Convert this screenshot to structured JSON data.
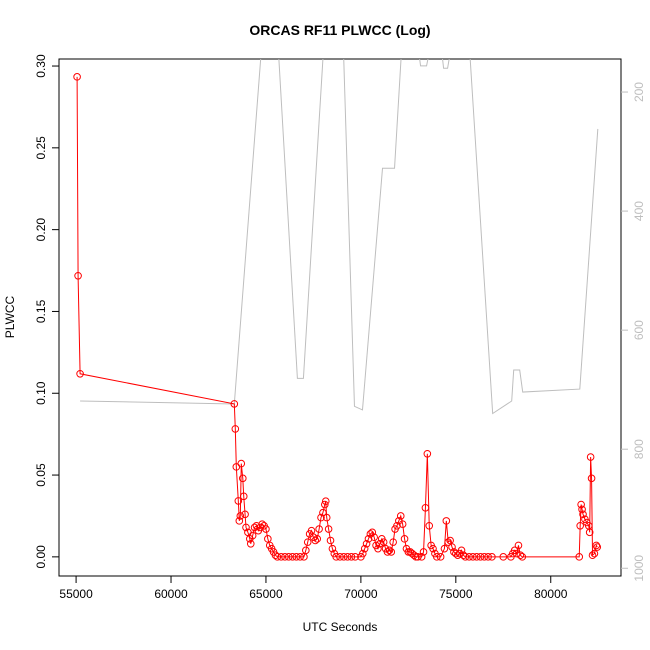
{
  "chart_data": {
    "type": "line",
    "title": "ORCAS RF11 PLWCC (Log)",
    "xlabel": "UTC Seconds",
    "ylabel": "PLWCC",
    "xlim": [
      54100,
      83700
    ],
    "xticks": [
      55000,
      60000,
      65000,
      70000,
      75000,
      80000
    ],
    "ylim": [
      -0.0117,
      0.3043
    ],
    "yticks": [
      {
        "value": 0,
        "label": "0.00"
      },
      {
        "value": 0.05,
        "label": "0.05"
      },
      {
        "value": 0.1,
        "label": "0.10"
      },
      {
        "value": 0.15,
        "label": "0.15"
      },
      {
        "value": 0.2,
        "label": "0.20"
      },
      {
        "value": 0.25,
        "label": "0.25"
      },
      {
        "value": 0.3,
        "label": "0.30"
      }
    ],
    "y2lim": [
      1013,
      144.5
    ],
    "y2ticks": [
      200,
      400,
      600,
      800,
      1000
    ],
    "y2color": "#bebebe",
    "series": [
      {
        "color": "#bebebe",
        "axis": "y2",
        "markers": false,
        "x": [
          55211,
          63333,
          64757,
          65654,
          66656,
          66973,
          68028,
          69083,
          69662,
          70084,
          71139,
          71772,
          72141,
          73038,
          73143,
          73460,
          73618,
          74250,
          74356,
          74567,
          74726,
          75728,
          76941,
          77943,
          78049,
          78365,
          78523,
          81530,
          82479
        ],
        "values": [
          719,
          724,
          130,
          130,
          681,
          681,
          130,
          130,
          728,
          734,
          328,
          328,
          130,
          130,
          156,
          156,
          130,
          130,
          160,
          160,
          130,
          130,
          740,
          719,
          667,
          667,
          704,
          699,
          262
        ]
      },
      {
        "color": "#ff0000",
        "axis": "y",
        "markers": true,
        "x": [
          55053,
          55105,
          55211,
          63333,
          63386,
          63439,
          63544,
          63597,
          63650,
          63700,
          63780,
          63830,
          63900,
          63950,
          64050,
          64150,
          64200,
          64300,
          64400,
          64500,
          64600,
          64700,
          64800,
          64900,
          65000,
          65100,
          65200,
          65300,
          65400,
          65500,
          65600,
          65800,
          66000,
          66200,
          66400,
          66600,
          66800,
          67000,
          67100,
          67200,
          67300,
          67400,
          67500,
          67600,
          67700,
          67800,
          67900,
          68000,
          68100,
          68150,
          68200,
          68300,
          68400,
          68500,
          68600,
          68700,
          68900,
          69100,
          69300,
          69500,
          69700,
          70000,
          70100,
          70200,
          70300,
          70400,
          70500,
          70600,
          70700,
          70800,
          70900,
          71000,
          71100,
          71200,
          71300,
          71400,
          71500,
          71600,
          71700,
          71800,
          71900,
          72000,
          72100,
          72200,
          72300,
          72400,
          72500,
          72600,
          72700,
          72800,
          72900,
          73000,
          73200,
          73300,
          73400,
          73500,
          73600,
          73700,
          73800,
          73900,
          74000,
          74200,
          74400,
          74500,
          74600,
          74700,
          74800,
          74900,
          75000,
          75100,
          75200,
          75300,
          75400,
          75500,
          75700,
          75900,
          76100,
          76300,
          76500,
          76700,
          76900,
          77500,
          77900,
          78000,
          78100,
          78200,
          78300,
          78400,
          78500,
          81500,
          81550,
          81600,
          81650,
          81700,
          81800,
          81900,
          82000,
          82050,
          82100,
          82150,
          82200,
          82300,
          82400,
          82450
        ],
        "values": [
          0.2934,
          0.1718,
          0.1119,
          0.0935,
          0.0782,
          0.055,
          0.0342,
          0.022,
          0.025,
          0.057,
          0.048,
          0.037,
          0.026,
          0.018,
          0.015,
          0.011,
          0.008,
          0.013,
          0.018,
          0.019,
          0.016,
          0.018,
          0.02,
          0.019,
          0.017,
          0.011,
          0.007,
          0.005,
          0.003,
          0.001,
          0,
          0,
          0,
          0,
          0,
          0,
          0,
          0,
          0.004,
          0.009,
          0.014,
          0.016,
          0.012,
          0.01,
          0.011,
          0.017,
          0.024,
          0.027,
          0.032,
          0.034,
          0.024,
          0.017,
          0.01,
          0.005,
          0.002,
          0,
          0,
          0,
          0,
          0,
          0,
          0,
          0.002,
          0.005,
          0.008,
          0.011,
          0.014,
          0.015,
          0.012,
          0.007,
          0.005,
          0.008,
          0.011,
          0.009,
          0.005,
          0.003,
          0.004,
          0.003,
          0.009,
          0.017,
          0.019,
          0.022,
          0.025,
          0.02,
          0.011,
          0.005,
          0.003,
          0.003,
          0.002,
          0.001,
          0,
          0,
          0,
          0.003,
          0.03,
          0.063,
          0.019,
          0.007,
          0.005,
          0.002,
          0,
          0,
          0.005,
          0.022,
          0.009,
          0.01,
          0.006,
          0.003,
          0.002,
          0.001,
          0.002,
          0.004,
          0.001,
          0,
          0,
          0,
          0,
          0,
          0,
          0,
          0,
          0,
          0,
          0.002,
          0.004,
          0.002,
          0.007,
          0.001,
          0,
          0,
          0.019,
          0.032,
          0.029,
          0.026,
          0.023,
          0.021,
          0.019,
          0.015,
          0.061,
          0.048,
          0.001,
          0.002,
          0.007,
          0.006
        ]
      }
    ]
  }
}
